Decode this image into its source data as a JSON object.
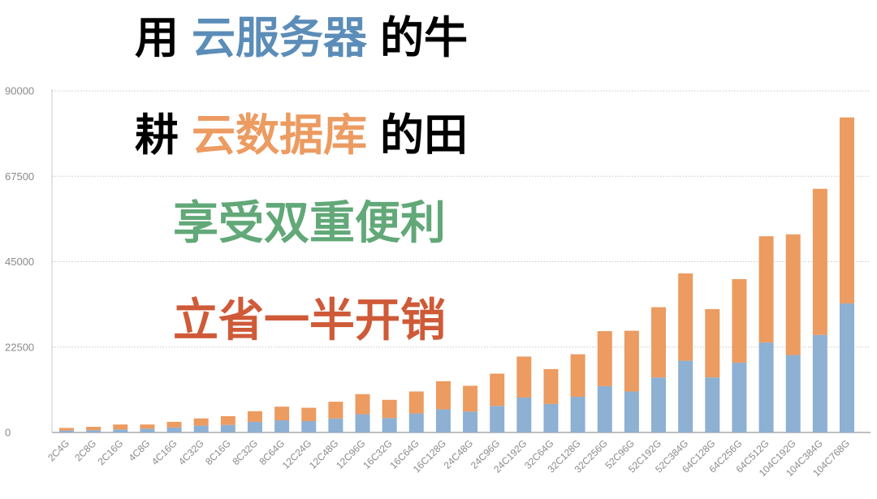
{
  "headline": {
    "line1": {
      "a": "用",
      "b": "云服务器",
      "c": "的牛"
    },
    "line2": {
      "a": "耕",
      "b": "云数据库",
      "c": "的田"
    },
    "line3": "享受双重便利",
    "line4": "立省一半开销"
  },
  "colors": {
    "black": "#000000",
    "blue_text": "#5b8db8",
    "orange_text": "#ec9b61",
    "green_text": "#62a878",
    "red_text": "#cf5a38",
    "series_bottom": "#8db0d3",
    "series_top": "#ec9b61",
    "grid": "#c8c8c8",
    "axis": "#9a9a9a"
  },
  "chart_data": {
    "type": "bar",
    "stacked": true,
    "categories": [
      "2C4G",
      "2C8G",
      "2C16G",
      "4C8G",
      "4C16G",
      "4C32G",
      "8C16G",
      "8C32G",
      "8C64G",
      "12C24G",
      "12C48G",
      "12C96G",
      "16C32G",
      "16C64G",
      "16C128G",
      "24C48G",
      "24C96G",
      "24C192G",
      "32C64G",
      "32C128G",
      "32C256G",
      "52C96G",
      "52C192G",
      "52C384G",
      "64C128G",
      "64C256G",
      "64C512G",
      "104C192G",
      "104C384G",
      "104C768G"
    ],
    "series": [
      {
        "values": [
          500,
          600,
          800,
          1000,
          1300,
          1800,
          2000,
          2800,
          3200,
          3000,
          3700,
          4800,
          3800,
          5000,
          6100,
          5500,
          7000,
          9200,
          7500,
          9400,
          12200,
          10800,
          14500,
          18900,
          14500,
          18400,
          23700,
          20400,
          25700,
          34000
        ]
      },
      {
        "values": [
          700,
          900,
          1300,
          1100,
          1500,
          1900,
          2300,
          2800,
          3600,
          3500,
          4400,
          5300,
          4800,
          5800,
          7400,
          6800,
          8500,
          10800,
          9200,
          11200,
          14500,
          16000,
          18500,
          23000,
          18000,
          22000,
          28000,
          31800,
          38500,
          49000
        ]
      }
    ],
    "yticks": [
      0,
      22500,
      45000,
      67500,
      90000
    ],
    "ylim": [
      0,
      90000
    ],
    "grid": true,
    "title": "",
    "xlabel": "",
    "ylabel": ""
  }
}
